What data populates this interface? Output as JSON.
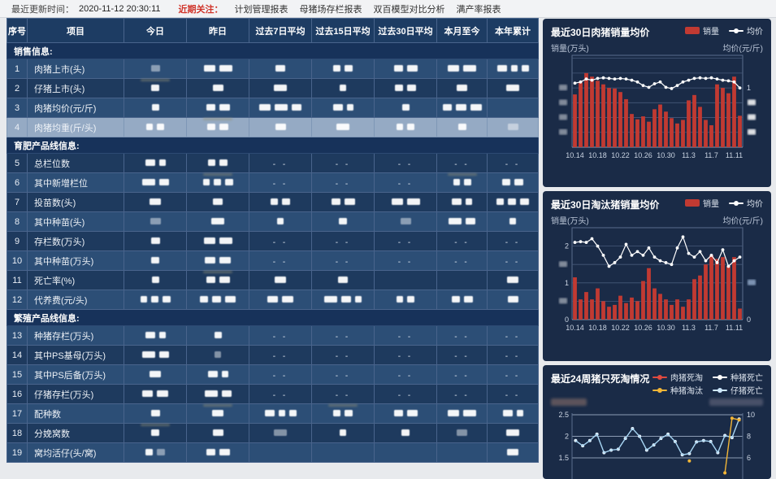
{
  "topbar": {
    "update_label": "最近更新时间：",
    "update_time": "2020-11-12 20:30:11",
    "focus_label": "近期关注：",
    "links": [
      "计划管理报表",
      "母猪场存栏报表",
      "双百模型对比分析",
      "满产率报表"
    ]
  },
  "table": {
    "columns": [
      "序号",
      "项目",
      "今日",
      "昨日",
      "过去7日平均",
      "过去15日平均",
      "过去30日平均",
      "本月至今",
      "本年累计"
    ],
    "values_redacted": true,
    "rows": [
      {
        "type": "section",
        "label": "销售信息:",
        "first_shade": "med"
      },
      {
        "type": "data",
        "no": "1",
        "name": "肉猪上市(头)",
        "cells": [
          "v1g",
          "v2",
          "v1",
          "v2",
          "v2",
          "v2",
          "v3"
        ]
      },
      {
        "type": "data",
        "no": "2",
        "name": "仔猪上市(头)",
        "cells": [
          "v1s",
          "v1",
          "v1",
          "v1",
          "v2",
          "v1",
          "v1"
        ]
      },
      {
        "type": "data",
        "no": "3",
        "name": "肉猪均价(元/斤)",
        "cells": [
          "v1",
          "v2",
          "v3",
          "v2",
          "v1",
          "v3",
          ""
        ]
      },
      {
        "type": "data",
        "no": "4",
        "name": "肉猪均重(斤/头)",
        "selected": true,
        "cells": [
          "v2",
          "v2s",
          "v1",
          "v1",
          "v2",
          "v1",
          "v1g"
        ]
      },
      {
        "type": "section",
        "label": "育肥产品线信息:",
        "first_shade": "dark"
      },
      {
        "type": "data",
        "no": "5",
        "name": "总栏位数",
        "cells": [
          "v2",
          "v2",
          "d",
          "d",
          "d",
          "d",
          "d"
        ]
      },
      {
        "type": "data",
        "no": "6",
        "name": "其中新增栏位",
        "cells": [
          "v2",
          "v3s",
          "d",
          "d",
          "d",
          "v2s",
          "v2"
        ]
      },
      {
        "type": "data",
        "no": "7",
        "name": "投苗数(头)",
        "cells": [
          "v1",
          "v1",
          "v2",
          "v2",
          "v2",
          "v2",
          "v3"
        ]
      },
      {
        "type": "data",
        "no": "8",
        "name": "其中种苗(头)",
        "cells": [
          "v1g",
          "v1",
          "v1",
          "v1",
          "v1g",
          "v2",
          "v1"
        ]
      },
      {
        "type": "data",
        "no": "9",
        "name": "存栏数(万头)",
        "cells": [
          "v1",
          "v2",
          "d",
          "d",
          "d",
          "d",
          "d"
        ]
      },
      {
        "type": "data",
        "no": "10",
        "name": "其中种苗(万头)",
        "cells": [
          "v1",
          "v2",
          "d",
          "d",
          "d",
          "d",
          "d"
        ]
      },
      {
        "type": "data",
        "no": "11",
        "name": "死亡率(%)",
        "cells": [
          "v1",
          "v2s",
          "v1",
          "v1",
          "",
          "",
          "v1"
        ]
      },
      {
        "type": "data",
        "no": "12",
        "name": "代养费(元/头)",
        "cells": [
          "v3",
          "v3",
          "v2",
          "v3",
          "v2",
          "v2",
          "v1"
        ]
      },
      {
        "type": "section",
        "label": "繁殖产品线信息:",
        "first_shade": "med"
      },
      {
        "type": "data",
        "no": "13",
        "name": "种猪存栏(万头)",
        "cells": [
          "v2",
          "v1",
          "d",
          "d",
          "d",
          "d",
          "d"
        ]
      },
      {
        "type": "data",
        "no": "14",
        "name": "其中PS基母(万头)",
        "cells": [
          "v2",
          "v1g",
          "d",
          "d",
          "d",
          "d",
          "d"
        ]
      },
      {
        "type": "data",
        "no": "15",
        "name": "其中PS后备(万头)",
        "cells": [
          "v1",
          "v2",
          "d",
          "d",
          "d",
          "d",
          "d"
        ]
      },
      {
        "type": "data",
        "no": "16",
        "name": "仔猪存栏(万头)",
        "cells": [
          "v2",
          "v2",
          "d",
          "d",
          "d",
          "d",
          "d"
        ]
      },
      {
        "type": "data",
        "no": "17",
        "name": "配种数",
        "cells": [
          "v1",
          "v1s",
          "v3",
          "v2s",
          "v2",
          "v2",
          "v2"
        ]
      },
      {
        "type": "data",
        "no": "18",
        "name": "分娩窝数",
        "cells": [
          "v1s",
          "v1",
          "v1g",
          "v1",
          "v1",
          "v1g",
          "v1"
        ]
      },
      {
        "type": "data",
        "no": "19",
        "name": "窝均活仔(头/窝)",
        "cells": [
          "v2g",
          "v2",
          "",
          "",
          "",
          "",
          "v1"
        ]
      }
    ]
  },
  "charts": [
    {
      "panel_title": "最近30日肉猪销量均价",
      "left_axis_label": "销量(万头)",
      "right_axis_label": "均价(元/斤)",
      "legend": [
        {
          "label": "销量",
          "type": "bar",
          "color": "#c13a32"
        },
        {
          "label": "均价",
          "type": "line",
          "color": "#ffffff"
        }
      ],
      "chart_data": {
        "type": "bar+line",
        "x_tick_labels": [
          "10.14",
          "10.18",
          "10.22",
          "10.26",
          "10.30",
          "11.3",
          "11.7",
          "11.11"
        ],
        "x_label_every": 4,
        "left_ylim": [
          0,
          1.55
        ],
        "grid_step": 0.25,
        "left_ticks": [
          {
            "v": 1.0,
            "redacted": true
          },
          {
            "v": 0.75,
            "redacted": true
          },
          {
            "v": 0.5,
            "redacted": true
          },
          {
            "v": 0.25,
            "redacted": true
          }
        ],
        "right_ticks": [
          {
            "v": 1.0,
            "label": "1"
          },
          {
            "v": 0.75,
            "redacted": true
          },
          {
            "v": 0.5,
            "redacted": true
          },
          {
            "v": 0.25,
            "redacted": true
          }
        ],
        "series": [
          {
            "name": "销量",
            "type": "bar",
            "color": "#c13a32",
            "values": [
              0.89,
              1.09,
              1.25,
              1.19,
              1.12,
              1.06,
              1.0,
              0.99,
              0.93,
              0.81,
              0.56,
              0.47,
              0.52,
              0.43,
              0.64,
              0.72,
              0.6,
              0.49,
              0.4,
              0.46,
              0.79,
              0.88,
              0.68,
              0.46,
              0.37,
              1.06,
              1.0,
              0.91,
              1.19,
              0.53
            ]
          },
          {
            "name": "均价",
            "type": "line",
            "color": "#ffffff",
            "values": [
              1.08,
              1.1,
              1.15,
              1.13,
              1.16,
              1.17,
              1.16,
              1.15,
              1.16,
              1.15,
              1.13,
              1.1,
              1.04,
              1.01,
              1.07,
              1.1,
              1.01,
              0.99,
              1.04,
              1.1,
              1.13,
              1.16,
              1.17,
              1.16,
              1.17,
              1.15,
              1.13,
              1.12,
              1.1,
              1.0
            ]
          }
        ]
      }
    },
    {
      "panel_title": "最近30日淘汰猪销量均价",
      "left_axis_label": "销量(万头)",
      "right_axis_label": "均价(元/斤)",
      "legend": [
        {
          "label": "销量",
          "type": "bar",
          "color": "#c13a32"
        },
        {
          "label": "均价",
          "type": "line",
          "color": "#ffffff"
        }
      ],
      "chart_data": {
        "type": "bar+line",
        "x_tick_labels": [
          "10.14",
          "10.18",
          "10.22",
          "10.26",
          "10.30",
          "11.3",
          "11.7",
          "11.11"
        ],
        "x_label_every": 4,
        "left_ylim": [
          0,
          2.5
        ],
        "grid_step": 0.5,
        "left_ticks": [
          {
            "v": 2.0,
            "label": "2"
          },
          {
            "v": 1.5,
            "redacted": true
          },
          {
            "v": 1.0,
            "label": "1"
          },
          {
            "v": 0.5,
            "redacted": true
          },
          {
            "v": 0,
            "label": "0"
          }
        ],
        "right_ticks": [
          {
            "v": 1.0,
            "redacted": true,
            "blue": true
          },
          {
            "v": 0,
            "label": "0"
          }
        ],
        "series": [
          {
            "name": "销量",
            "type": "bar",
            "color": "#c13a32",
            "values": [
              1.15,
              0.55,
              0.75,
              0.55,
              0.85,
              0.5,
              0.35,
              0.4,
              0.65,
              0.45,
              0.6,
              0.5,
              1.05,
              1.4,
              0.85,
              0.7,
              0.55,
              0.4,
              0.55,
              0.35,
              0.55,
              1.1,
              1.2,
              1.5,
              1.75,
              1.65,
              1.7,
              1.45,
              1.7,
              0.3
            ]
          },
          {
            "name": "均价",
            "type": "line",
            "color": "#ffffff",
            "values": [
              2.1,
              2.12,
              2.1,
              2.2,
              2.0,
              1.75,
              1.45,
              1.55,
              1.7,
              2.05,
              1.75,
              1.85,
              1.75,
              1.95,
              1.7,
              1.6,
              1.55,
              1.5,
              1.95,
              2.25,
              1.8,
              1.7,
              1.85,
              1.6,
              1.75,
              1.55,
              1.9,
              1.45,
              1.6,
              1.7
            ]
          }
        ]
      }
    },
    {
      "panel_title": "最近24周猪只死淘情况",
      "left_axis_redacted": true,
      "right_axis_redacted": true,
      "legend": [
        {
          "label": "肉猪死淘",
          "color": "#e04a3f"
        },
        {
          "label": "种猪死亡",
          "color": "#ffffff"
        },
        {
          "label": "种猪淘汰",
          "color": "#f3b637"
        },
        {
          "label": "仔猪死亡",
          "color": "#cfe9ff"
        }
      ],
      "chart_data": {
        "type": "line",
        "n_points": 24,
        "left_ticks": [
          {
            "v": 2.5,
            "label": "2.5"
          },
          {
            "v": 2.0,
            "label": "2"
          },
          {
            "v": 1.5,
            "label": "1.5"
          }
        ],
        "right_ticks": [
          {
            "v": 2.5,
            "label": "10"
          },
          {
            "v": 2.0,
            "label": "8"
          },
          {
            "v": 1.5,
            "label": "6"
          }
        ],
        "series": [
          {
            "name": "仔猪死亡",
            "color": "#a9d7f5",
            "dot": "#e8f4ff",
            "values": [
              1.9,
              1.78,
              1.9,
              2.05,
              1.62,
              1.68,
              1.7,
              1.95,
              2.18,
              2.0,
              1.68,
              1.8,
              1.95,
              2.05,
              1.88,
              1.57,
              1.6,
              1.87,
              1.9,
              1.88,
              1.62,
              2.02,
              1.97,
              2.4
            ]
          },
          {
            "name": "种猪淘汰",
            "color": "#f3b637",
            "dot": "#f3b637",
            "values": [
              null,
              null,
              null,
              null,
              null,
              null,
              null,
              null,
              null,
              null,
              null,
              null,
              null,
              null,
              null,
              null,
              1.43,
              null,
              null,
              null,
              null,
              1.15,
              2.42,
              2.38
            ]
          }
        ]
      }
    }
  ]
}
